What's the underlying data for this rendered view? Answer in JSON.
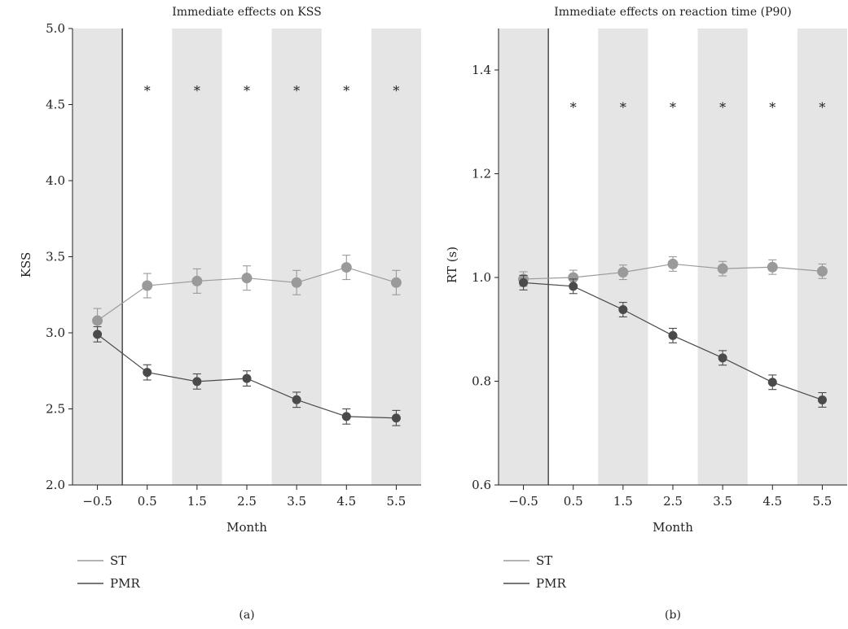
{
  "colors": {
    "shade": "#e5e5e6",
    "st": "#9a9a9a",
    "pmr": "#4a4a4a",
    "axis": "#222222"
  },
  "chart_data": [
    {
      "type": "line",
      "panel_label": "(a)",
      "title": "Immediate effects on KSS",
      "xlabel": "Month",
      "ylabel": "KSS",
      "x": [
        -0.5,
        0.5,
        1.5,
        2.5,
        3.5,
        4.5,
        5.5
      ],
      "xtick_labels": [
        "−0.5",
        "0.5",
        "1.5",
        "2.5",
        "3.5",
        "4.5",
        "5.5"
      ],
      "xlim": [
        -1,
        6
      ],
      "ylim": [
        2.0,
        5.0
      ],
      "yticks": [
        2.0,
        2.5,
        3.0,
        3.5,
        4.0,
        4.5,
        5.0
      ],
      "ytick_labels": [
        "2.0",
        "2.5",
        "3.0",
        "3.5",
        "4.0",
        "4.5",
        "5.0"
      ],
      "shaded_bands": [
        [
          -1,
          0
        ],
        [
          1,
          2
        ],
        [
          3,
          4
        ],
        [
          5,
          6
        ]
      ],
      "vline_x": 0,
      "significance": {
        "symbol": "*",
        "x": [
          0.5,
          1.5,
          2.5,
          3.5,
          4.5,
          5.5
        ],
        "y": 4.6
      },
      "grid": false,
      "legend_position": "bottom-left",
      "series": [
        {
          "name": "ST",
          "color_key": "st",
          "values": [
            3.08,
            3.31,
            3.34,
            3.36,
            3.33,
            3.43,
            3.33
          ],
          "errors": [
            0.08,
            0.08,
            0.08,
            0.08,
            0.08,
            0.08,
            0.08
          ]
        },
        {
          "name": "PMR",
          "color_key": "pmr",
          "values": [
            2.99,
            2.74,
            2.68,
            2.7,
            2.56,
            2.45,
            2.44
          ],
          "errors": [
            0.05,
            0.05,
            0.05,
            0.05,
            0.05,
            0.05,
            0.05
          ]
        }
      ]
    },
    {
      "type": "line",
      "panel_label": "(b)",
      "title": "Immediate effects on reaction time (P90)",
      "xlabel": "Month",
      "ylabel": "RT (s)",
      "x": [
        -0.5,
        0.5,
        1.5,
        2.5,
        3.5,
        4.5,
        5.5
      ],
      "xtick_labels": [
        "−0.5",
        "0.5",
        "1.5",
        "2.5",
        "3.5",
        "4.5",
        "5.5"
      ],
      "xlim": [
        -1,
        6
      ],
      "ylim": [
        0.6,
        1.48
      ],
      "yticks": [
        0.6,
        0.8,
        1.0,
        1.2,
        1.4
      ],
      "ytick_labels": [
        "0.6",
        "0.8",
        "1.0",
        "1.2",
        "1.4"
      ],
      "shaded_bands": [
        [
          -1,
          0
        ],
        [
          1,
          2
        ],
        [
          3,
          4
        ],
        [
          5,
          6
        ]
      ],
      "vline_x": 0,
      "significance": {
        "symbol": "*",
        "x": [
          0.5,
          1.5,
          2.5,
          3.5,
          4.5,
          5.5
        ],
        "y": 1.33
      },
      "grid": false,
      "legend_position": "bottom-left",
      "series": [
        {
          "name": "ST",
          "color_key": "st",
          "values": [
            0.997,
            1.0,
            1.01,
            1.026,
            1.017,
            1.02,
            1.012
          ],
          "errors": [
            0.014,
            0.014,
            0.014,
            0.014,
            0.014,
            0.014,
            0.014
          ]
        },
        {
          "name": "PMR",
          "color_key": "pmr",
          "values": [
            0.99,
            0.983,
            0.938,
            0.888,
            0.845,
            0.798,
            0.764
          ],
          "errors": [
            0.014,
            0.014,
            0.014,
            0.014,
            0.014,
            0.014,
            0.014
          ]
        }
      ]
    }
  ]
}
